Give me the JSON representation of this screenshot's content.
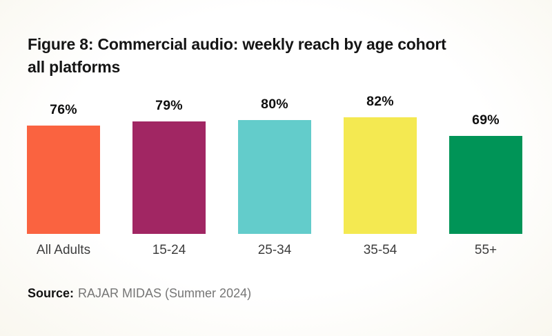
{
  "figure": {
    "title_line1": "Figure 8: Commercial audio: weekly reach by age cohort",
    "title_line2": "all platforms",
    "source_label": "Source:",
    "source_text": "RAJAR MIDAS (Summer 2024)"
  },
  "chart_data": {
    "type": "bar",
    "title": "Figure 8: Commercial audio: weekly reach by age cohort all platforms",
    "categories": [
      "All Adults",
      "15-24",
      "25-34",
      "35-54",
      "55+"
    ],
    "values": [
      76,
      79,
      80,
      82,
      69
    ],
    "value_labels": [
      "76%",
      "79%",
      "80%",
      "82%",
      "69%"
    ],
    "bar_colors": [
      "#FA6340",
      "#A12663",
      "#63CCCB",
      "#F4E951",
      "#009457"
    ],
    "xlabel": "",
    "ylabel": "",
    "ylim": [
      0,
      100
    ],
    "grid": false,
    "legend": false,
    "data_labels": true,
    "source": "RAJAR MIDAS (Summer 2024)"
  }
}
